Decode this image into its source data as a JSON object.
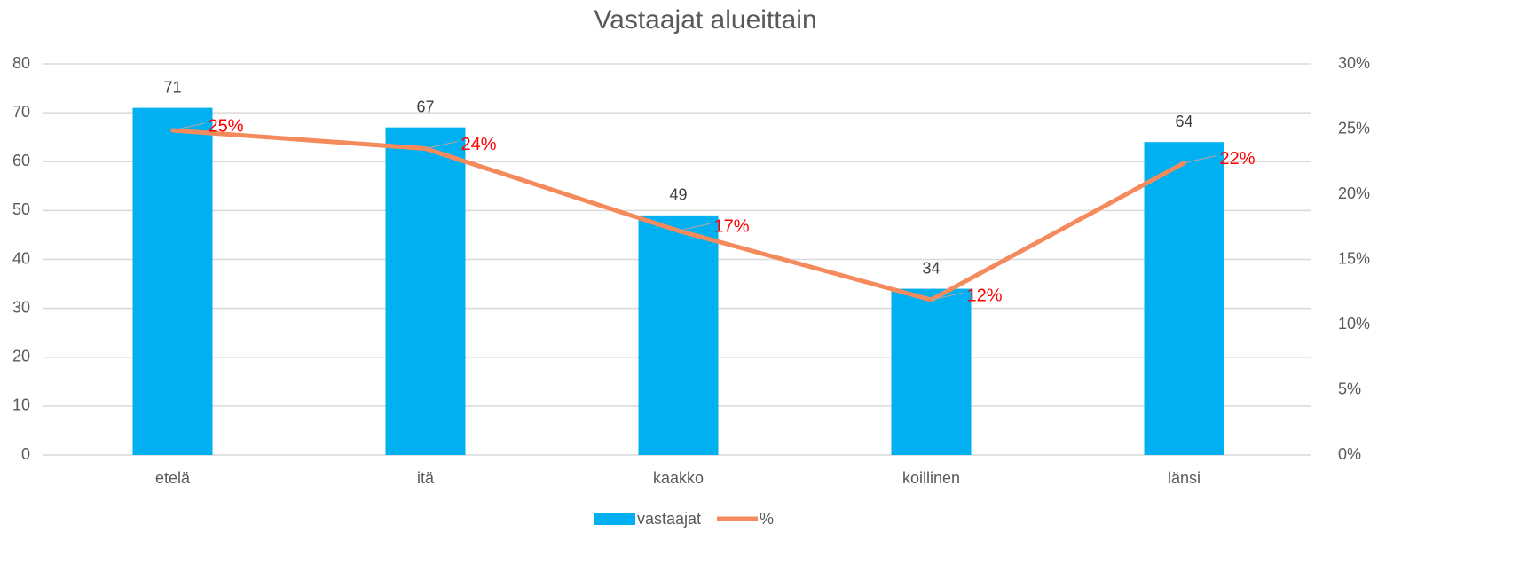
{
  "chart_data": {
    "type": "bar_line",
    "title": "Vastaajat alueittain",
    "categories": [
      "etelä",
      "itä",
      "kaakko",
      "koillinen",
      "länsi"
    ],
    "series": [
      {
        "name": "vastaajat",
        "type": "bar",
        "color": "#00b0f0",
        "values": [
          71,
          67,
          49,
          34,
          64
        ]
      },
      {
        "name": "%",
        "type": "line",
        "axis": "y2",
        "color": "#f58b5c",
        "values": [
          24.9,
          23.5,
          17.2,
          11.9,
          22.4
        ],
        "value_labels": [
          "25%",
          "24%",
          "17%",
          "12%",
          "22%"
        ],
        "label_color": "#ff0000"
      }
    ],
    "ylim": [
      0,
      80
    ],
    "yticks": [
      0,
      10,
      20,
      30,
      40,
      50,
      60,
      70,
      80
    ],
    "y2lim": [
      0,
      30
    ],
    "y2ticks": [
      {
        "value": 0,
        "label": "0%"
      },
      {
        "value": 5,
        "label": "5%"
      },
      {
        "value": 10,
        "label": "10%"
      },
      {
        "value": 15,
        "label": "15%"
      },
      {
        "value": 20,
        "label": "20%"
      },
      {
        "value": 25,
        "label": "25%"
      },
      {
        "value": 30,
        "label": "30%"
      }
    ],
    "grid": true,
    "legend": "bottom"
  }
}
